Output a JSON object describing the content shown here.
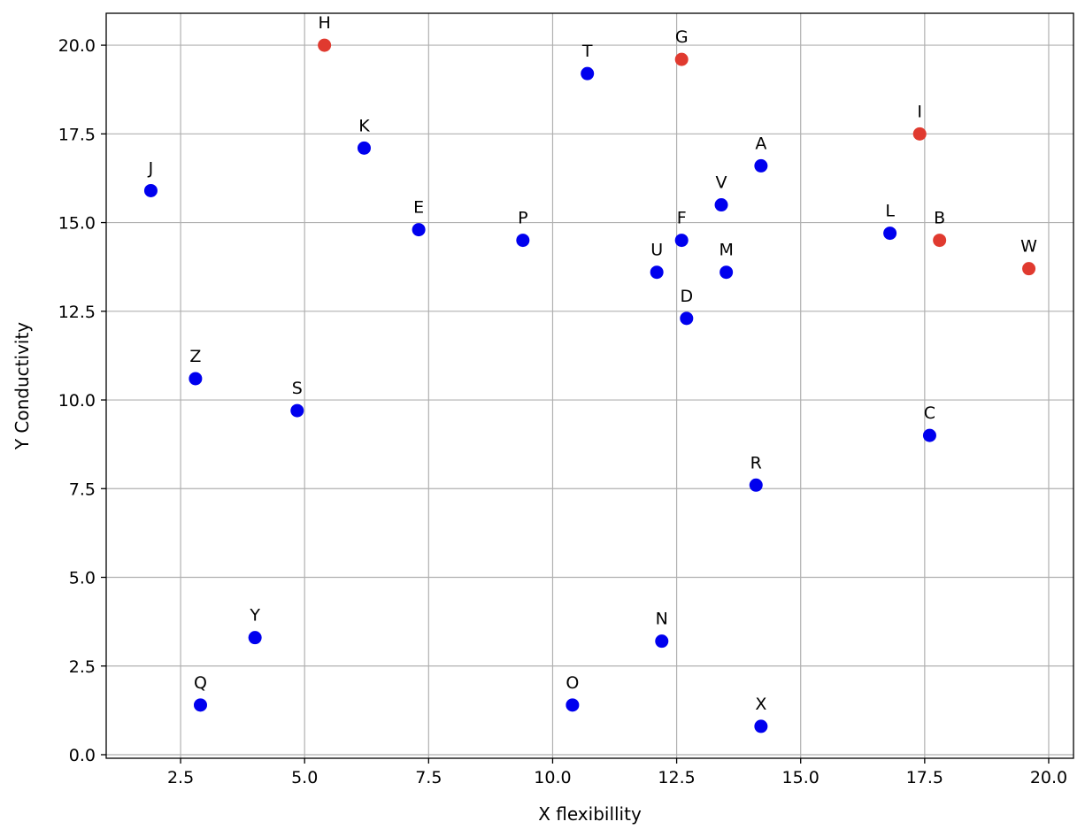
{
  "chart_data": {
    "type": "scatter",
    "title": "",
    "xlabel": "X flexibillity",
    "ylabel": "Y Conductivity",
    "xlim": [
      1.0,
      20.5
    ],
    "ylim": [
      -0.1,
      20.9
    ],
    "x_ticks": [
      2.5,
      5.0,
      7.5,
      10.0,
      12.5,
      15.0,
      17.5,
      20.0
    ],
    "y_ticks": [
      0.0,
      2.5,
      5.0,
      7.5,
      10.0,
      12.5,
      15.0,
      17.5,
      20.0
    ],
    "x_tick_labels": [
      "2.5",
      "5.0",
      "7.5",
      "10.0",
      "12.5",
      "15.0",
      "17.5",
      "20.0"
    ],
    "y_tick_labels": [
      "0.0",
      "2.5",
      "5.0",
      "7.5",
      "10.0",
      "12.5",
      "15.0",
      "17.5",
      "20.0"
    ],
    "grid": true,
    "colors": {
      "blue": "#0000ee",
      "red": "#e03a2f"
    },
    "points": [
      {
        "label": "A",
        "x": 14.2,
        "y": 16.6,
        "color": "blue"
      },
      {
        "label": "B",
        "x": 17.8,
        "y": 14.5,
        "color": "red"
      },
      {
        "label": "C",
        "x": 17.6,
        "y": 9.0,
        "color": "blue"
      },
      {
        "label": "D",
        "x": 12.7,
        "y": 12.3,
        "color": "blue"
      },
      {
        "label": "E",
        "x": 7.3,
        "y": 14.8,
        "color": "blue"
      },
      {
        "label": "F",
        "x": 12.6,
        "y": 14.5,
        "color": "blue"
      },
      {
        "label": "G",
        "x": 12.6,
        "y": 19.6,
        "color": "red"
      },
      {
        "label": "H",
        "x": 5.4,
        "y": 20.0,
        "color": "red"
      },
      {
        "label": "I",
        "x": 17.4,
        "y": 17.5,
        "color": "red"
      },
      {
        "label": "J",
        "x": 1.9,
        "y": 15.9,
        "color": "blue"
      },
      {
        "label": "K",
        "x": 6.2,
        "y": 17.1,
        "color": "blue"
      },
      {
        "label": "L",
        "x": 16.8,
        "y": 14.7,
        "color": "blue"
      },
      {
        "label": "M",
        "x": 13.5,
        "y": 13.6,
        "color": "blue"
      },
      {
        "label": "N",
        "x": 12.2,
        "y": 3.2,
        "color": "blue"
      },
      {
        "label": "O",
        "x": 10.4,
        "y": 1.4,
        "color": "blue"
      },
      {
        "label": "P",
        "x": 9.4,
        "y": 14.5,
        "color": "blue"
      },
      {
        "label": "Q",
        "x": 2.9,
        "y": 1.4,
        "color": "blue"
      },
      {
        "label": "R",
        "x": 14.1,
        "y": 7.6,
        "color": "blue"
      },
      {
        "label": "S",
        "x": 4.85,
        "y": 9.7,
        "color": "blue"
      },
      {
        "label": "T",
        "x": 10.7,
        "y": 19.2,
        "color": "blue"
      },
      {
        "label": "U",
        "x": 12.1,
        "y": 13.6,
        "color": "blue"
      },
      {
        "label": "V",
        "x": 13.4,
        "y": 15.5,
        "color": "blue"
      },
      {
        "label": "W",
        "x": 19.6,
        "y": 13.7,
        "color": "red"
      },
      {
        "label": "X",
        "x": 14.2,
        "y": 0.8,
        "color": "blue"
      },
      {
        "label": "Y",
        "x": 4.0,
        "y": 3.3,
        "color": "blue"
      },
      {
        "label": "Z",
        "x": 2.8,
        "y": 10.6,
        "color": "blue"
      }
    ]
  }
}
